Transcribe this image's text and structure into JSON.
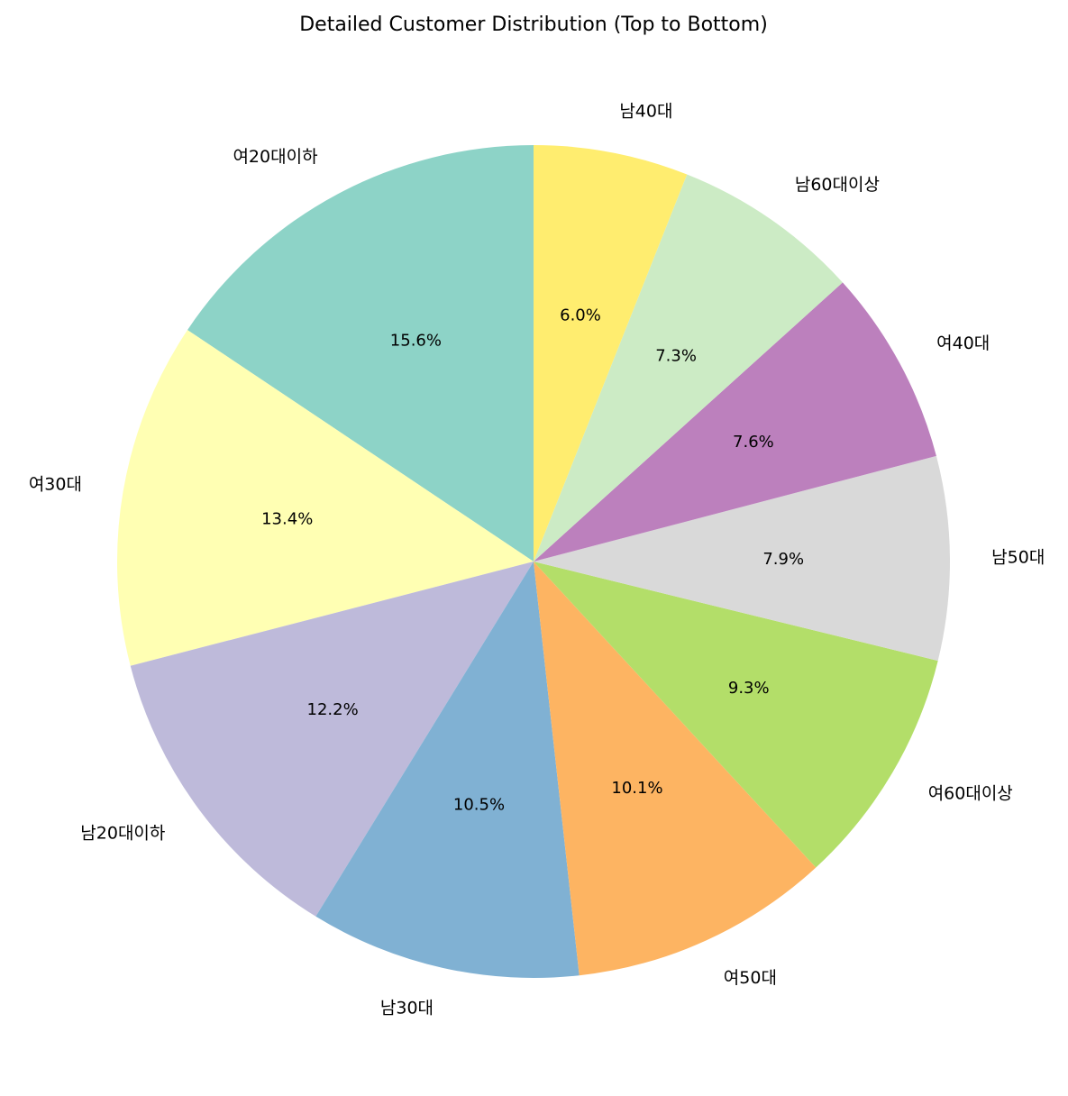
{
  "chart_data": {
    "type": "pie",
    "title": "Detailed Customer Distribution (Top to Bottom)",
    "start_angle_deg": 90,
    "direction": "counterclockwise",
    "slices": [
      {
        "label": "여20대이하",
        "value": 15.6,
        "pct_label": "15.6%",
        "color": "#8dd3c7"
      },
      {
        "label": "여30대",
        "value": 13.4,
        "pct_label": "13.4%",
        "color": "#ffffb3"
      },
      {
        "label": "남20대이하",
        "value": 12.2,
        "pct_label": "12.2%",
        "color": "#bebada"
      },
      {
        "label": "남30대",
        "value": 10.5,
        "pct_label": "10.5%",
        "color": "#80b1d3"
      },
      {
        "label": "여50대",
        "value": 10.1,
        "pct_label": "10.1%",
        "color": "#fdb462"
      },
      {
        "label": "여60대이상",
        "value": 9.3,
        "pct_label": "9.3%",
        "color": "#b3de69"
      },
      {
        "label": "남50대",
        "value": 7.9,
        "pct_label": "7.9%",
        "color": "#d9d9d9"
      },
      {
        "label": "여40대",
        "value": 7.6,
        "pct_label": "7.6%",
        "color": "#bc80bd"
      },
      {
        "label": "남60대이상",
        "value": 7.3,
        "pct_label": "7.3%",
        "color": "#ccebc5"
      },
      {
        "label": "남40대",
        "value": 6.0,
        "pct_label": "6.0%",
        "color": "#ffed6f"
      }
    ]
  }
}
